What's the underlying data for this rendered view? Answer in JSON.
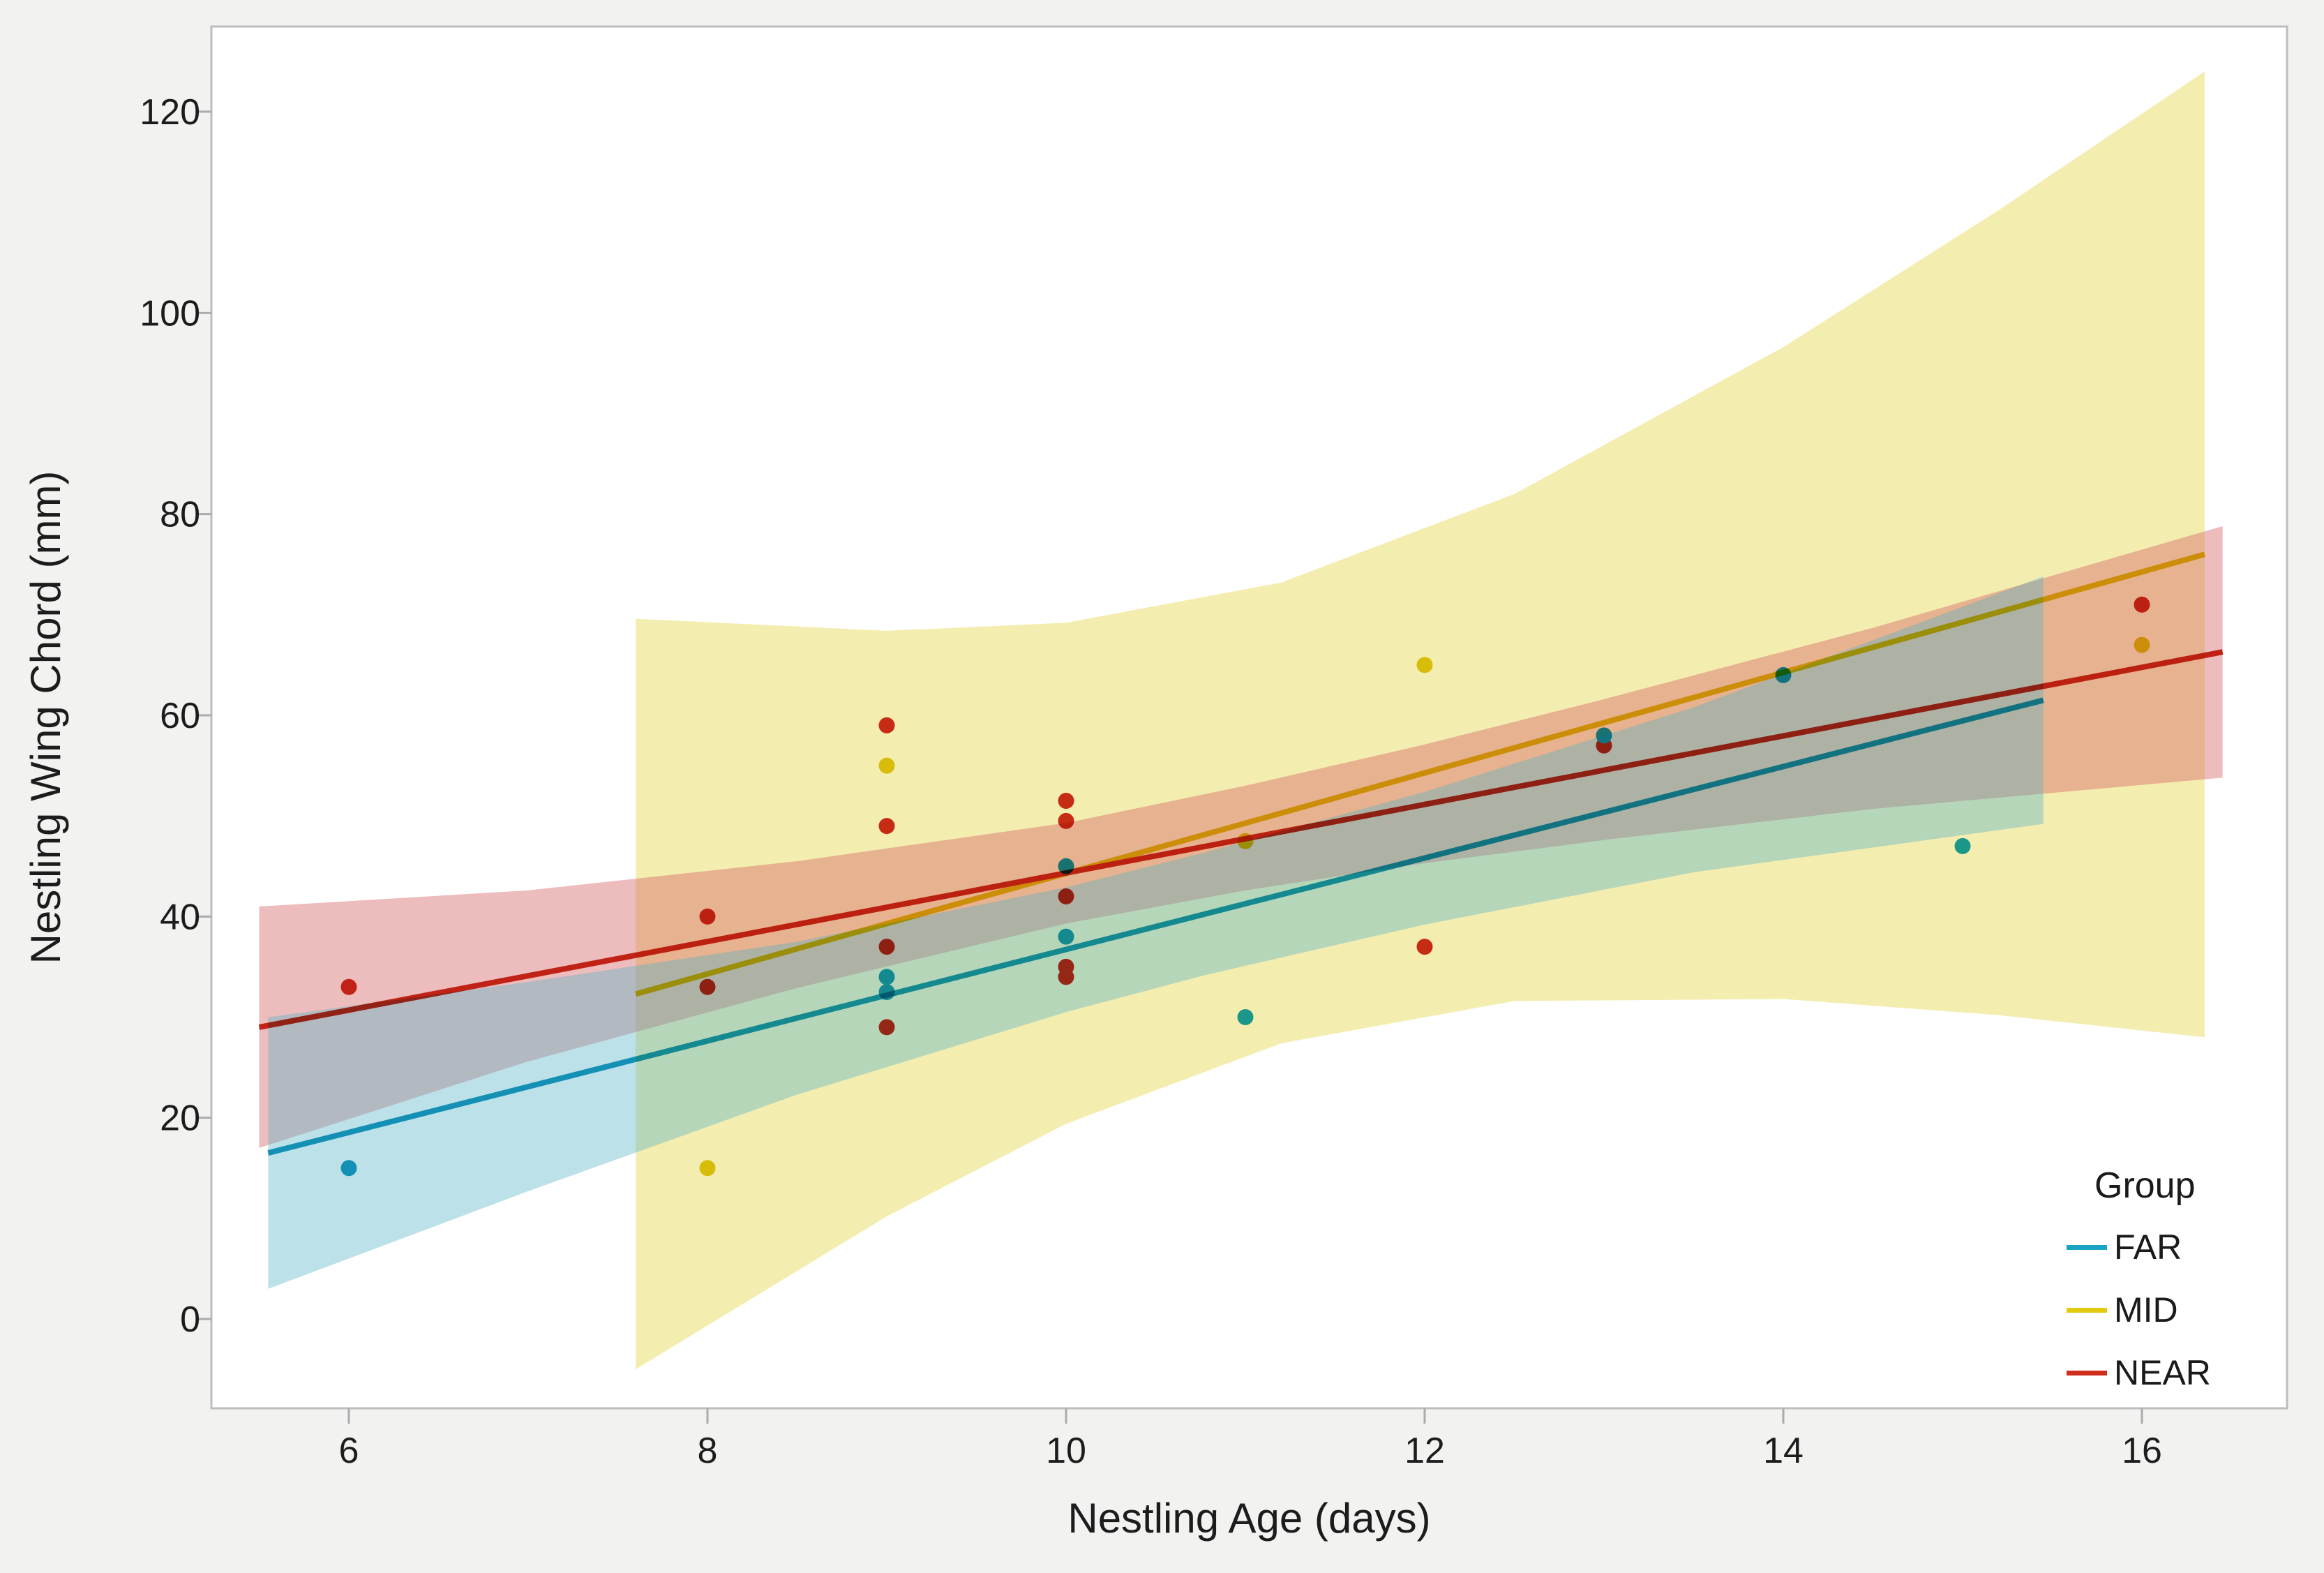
{
  "chart_data": {
    "type": "scatter",
    "title": "",
    "xlabel": "Nestling Age (days)",
    "ylabel": "Nestling Wing Chord (mm)",
    "xlim": [
      5.23,
      16.81
    ],
    "ylim": [
      -8.9,
      128.5
    ],
    "x_ticks": [
      "6",
      "8",
      "10",
      "12",
      "14",
      "16"
    ],
    "y_ticks": [
      "0",
      "20",
      "40",
      "60",
      "80",
      "100",
      "120"
    ],
    "grid": false,
    "plot_bg": "#ffffff",
    "outer_bg": "#f2f2f1",
    "frame_color": "#bdbdbd",
    "tick_color": "#ababab",
    "text_color": "#1c1c1c",
    "legend": {
      "title": "Group",
      "position": "bottom-right",
      "entries": [
        {
          "label": "FAR",
          "color": "#1BA3C6"
        },
        {
          "label": "MID",
          "color": "#E2CB0E"
        },
        {
          "label": "NEAR",
          "color": "#CF2E1D"
        }
      ]
    },
    "series": [
      {
        "name": "MID",
        "color": "#E2CB0E",
        "band_fill": "rgba(230,214,80,0.45)",
        "points": [
          [
            8,
            15
          ],
          [
            9,
            55
          ],
          [
            11,
            47.5
          ],
          [
            12,
            65
          ],
          [
            16,
            67
          ]
        ],
        "fit_line": {
          "x": [
            7.6,
            16.35
          ],
          "y": [
            32.3,
            76.0
          ]
        },
        "ci_band": {
          "x": [
            7.6,
            9,
            10,
            11.2,
            12.5,
            14,
            15.2,
            16.35
          ],
          "top": [
            69.6,
            68.4,
            69.2,
            73.2,
            82.0,
            96.6,
            110.2,
            124.0
          ],
          "bottom": [
            -5.0,
            10.2,
            19.4,
            27.4,
            31.6,
            31.8,
            30.2,
            28.0
          ]
        }
      },
      {
        "name": "NEAR",
        "color": "#CF2E1D",
        "band_fill": "rgba(213,96,98,0.42)",
        "points": [
          [
            6,
            33
          ],
          [
            8,
            40
          ],
          [
            8,
            33
          ],
          [
            9,
            59
          ],
          [
            9,
            49
          ],
          [
            9,
            37
          ],
          [
            9,
            29
          ],
          [
            10,
            51.5
          ],
          [
            10,
            49.5
          ],
          [
            10,
            42
          ],
          [
            10,
            35
          ],
          [
            10,
            34
          ],
          [
            12,
            37
          ],
          [
            13,
            57
          ],
          [
            16,
            71
          ]
        ],
        "fit_line": {
          "x": [
            5.5,
            16.45
          ],
          "y": [
            29.0,
            66.3
          ]
        },
        "ci_band": {
          "x": [
            5.5,
            7,
            8.5,
            10,
            11,
            12,
            13,
            14.5,
            16.45
          ],
          "top": [
            41.0,
            42.6,
            45.5,
            49.3,
            53.0,
            57.1,
            61.6,
            68.7,
            78.8
          ],
          "bottom": [
            17.0,
            25.6,
            32.9,
            39.3,
            42.6,
            45.3,
            47.6,
            50.7,
            53.8
          ]
        }
      },
      {
        "name": "FAR",
        "color": "#1BA3C6",
        "band_fill": "rgba(90,180,200,0.40)",
        "points": [
          [
            6,
            15
          ],
          [
            9,
            34
          ],
          [
            9,
            32.5
          ],
          [
            10,
            45
          ],
          [
            10,
            38
          ],
          [
            11,
            30
          ],
          [
            13,
            58
          ],
          [
            14,
            64
          ],
          [
            15,
            47
          ]
        ],
        "fit_line": {
          "x": [
            5.55,
            15.45
          ],
          "y": [
            16.5,
            61.5
          ]
        },
        "ci_band": {
          "x": [
            5.55,
            7,
            8.5,
            10,
            10.78,
            12,
            13.5,
            15.45
          ],
          "top": [
            30.0,
            33.5,
            37.5,
            42.9,
            46.4,
            52.4,
            60.8,
            73.8
          ],
          "bottom": [
            3.0,
            12.7,
            22.3,
            30.5,
            34.2,
            39.2,
            44.4,
            49.2
          ]
        }
      }
    ]
  }
}
